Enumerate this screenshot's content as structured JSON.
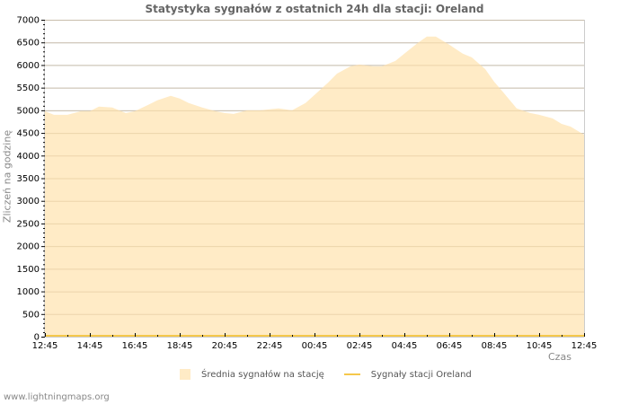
{
  "chart_data": {
    "type": "area",
    "title": "Statystyka sygnałów z ostatnich 24h dla stacji: Oreland",
    "xlabel": "Czas",
    "ylabel": "Zliczeń na godzinę",
    "ylim": [
      0,
      7000
    ],
    "yticks": [
      0,
      500,
      1000,
      1500,
      2000,
      2500,
      3000,
      3500,
      4000,
      4500,
      5000,
      5500,
      6000,
      6500,
      7000
    ],
    "xtick_labels": [
      "12:45",
      "14:45",
      "16:45",
      "18:45",
      "20:45",
      "22:45",
      "00:45",
      "02:45",
      "04:45",
      "06:45",
      "08:45",
      "10:45",
      "12:45"
    ],
    "grid": true,
    "legend_position": "bottom",
    "x_hours": [
      0,
      0.4,
      1,
      1.6,
      2,
      2.4,
      3,
      3.6,
      4,
      4.6,
      5,
      5.6,
      6,
      6.4,
      7,
      7.6,
      8,
      8.4,
      9,
      9.6,
      10,
      10.4,
      11,
      11.6,
      12,
      12.6,
      13,
      13.6,
      14,
      14.6,
      15,
      15.6,
      16,
      16.6,
      17,
      17.4,
      18,
      18.6,
      19,
      19.6,
      20,
      20.4,
      21,
      21.6,
      22,
      22.6,
      23,
      23.4,
      24
    ],
    "series": [
      {
        "name": "Średnia sygnałów na stację",
        "style": "area",
        "color": "#ffebc6",
        "values": [
          4980,
          4900,
          4900,
          4980,
          4980,
          5080,
          5060,
          4940,
          4980,
          5120,
          5220,
          5320,
          5260,
          5160,
          5060,
          4980,
          4940,
          4920,
          5000,
          5000,
          5020,
          5040,
          5000,
          5160,
          5340,
          5610,
          5810,
          5970,
          6010,
          5970,
          5970,
          6090,
          6250,
          6490,
          6630,
          6630,
          6450,
          6250,
          6170,
          5910,
          5630,
          5400,
          5040,
          4940,
          4900,
          4820,
          4700,
          4640,
          4460
        ]
      },
      {
        "name": "Sygnały stacji Oreland",
        "style": "line",
        "color": "#f5c84b",
        "values": [
          0,
          0,
          0,
          0,
          0,
          0,
          0,
          0,
          0,
          0,
          0,
          0,
          0,
          0,
          0,
          0,
          0,
          0,
          0,
          0,
          0,
          0,
          0,
          0,
          0,
          0,
          0,
          0,
          0,
          0,
          0,
          0,
          0,
          0,
          0,
          0,
          0,
          0,
          0,
          0,
          0,
          0,
          0,
          0,
          0,
          0,
          0,
          0,
          0
        ]
      }
    ]
  },
  "legend": {
    "item1": "Średnia sygnałów na stację",
    "item2": "Sygnały stacji Oreland"
  },
  "footer": {
    "watermark": "www.lightningmaps.org"
  }
}
